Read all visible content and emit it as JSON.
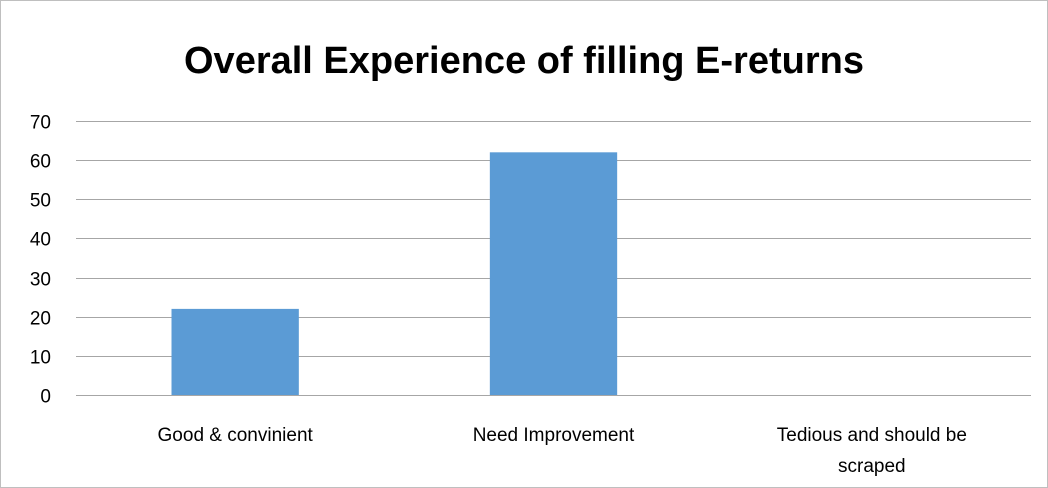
{
  "chart_data": {
    "type": "bar",
    "title": "Overall Experience of filling E-returns",
    "xlabel": "",
    "ylabel": "",
    "categories": [
      "Good & convinient",
      "Need Improvement",
      "Tedious and should be scraped"
    ],
    "category_lines": [
      [
        "Good & convinient"
      ],
      [
        "Need Improvement"
      ],
      [
        "Tedious and should be",
        "scraped"
      ]
    ],
    "values": [
      22,
      62,
      0
    ],
    "ylim": [
      0,
      70
    ],
    "yticks": [
      0,
      10,
      20,
      30,
      40,
      50,
      60,
      70
    ],
    "grid": true,
    "legend": "none",
    "bar_color": "#5b9bd5",
    "grid_color": "#a6a6a6"
  }
}
